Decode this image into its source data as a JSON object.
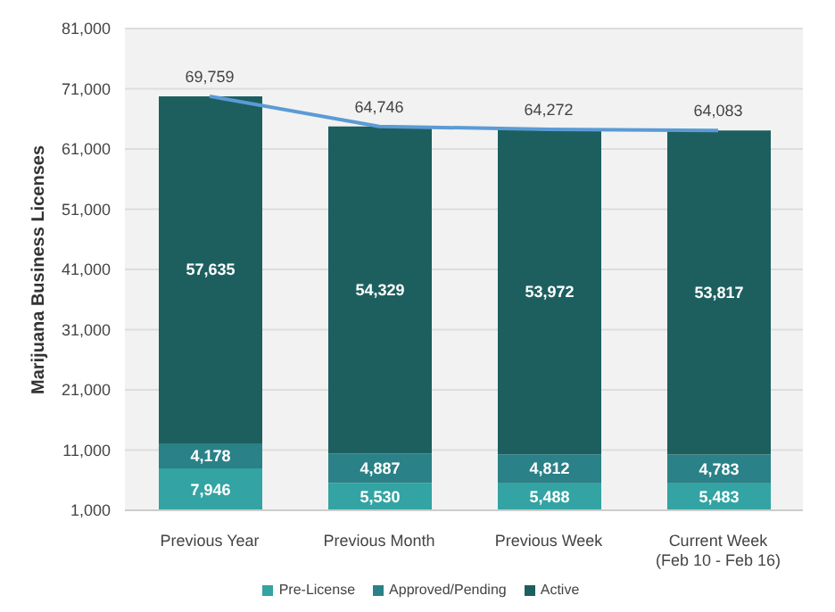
{
  "chart_data": {
    "type": "bar",
    "stacked": true,
    "ylabel": "Marijuana Business Licenses",
    "categories": [
      "Previous Year",
      "Previous Month",
      "Previous Week",
      "Current Week\n(Feb 10 - Feb 16)"
    ],
    "series": [
      {
        "name": "Pre-License",
        "color": "#33a3a3",
        "values": [
          7946,
          5530,
          5488,
          5483
        ],
        "value_labels": [
          "7,946",
          "5,530",
          "5,488",
          "5,483"
        ]
      },
      {
        "name": "Approved/Pending",
        "color": "#2a8187",
        "values": [
          4178,
          4887,
          4812,
          4783
        ],
        "value_labels": [
          "4,178",
          "4,887",
          "4,812",
          "4,783"
        ]
      },
      {
        "name": "Active",
        "color": "#1d5f5f",
        "values": [
          57635,
          54329,
          53972,
          53817
        ],
        "value_labels": [
          "57,635",
          "54,329",
          "53,972",
          "53,817"
        ]
      },
      {
        "type": "line",
        "color": "#5b9bd5",
        "values": [
          69759,
          64746,
          64272,
          64083
        ],
        "value_labels": [
          "69,759",
          "64,746",
          "64,272",
          "64,083"
        ]
      }
    ],
    "ylim": [
      1000,
      81000
    ],
    "yticks": [
      {
        "value": 1000,
        "label": "1,000"
      },
      {
        "value": 11000,
        "label": "11,000"
      },
      {
        "value": 21000,
        "label": "21,000"
      },
      {
        "value": 31000,
        "label": "31,000"
      },
      {
        "value": 41000,
        "label": "41,000"
      },
      {
        "value": 51000,
        "label": "51,000"
      },
      {
        "value": 61000,
        "label": "61,000"
      },
      {
        "value": 71000,
        "label": "71,000"
      },
      {
        "value": 81000,
        "label": "81,000"
      }
    ],
    "grid": "y",
    "legend": "bottom",
    "marker": "none"
  }
}
